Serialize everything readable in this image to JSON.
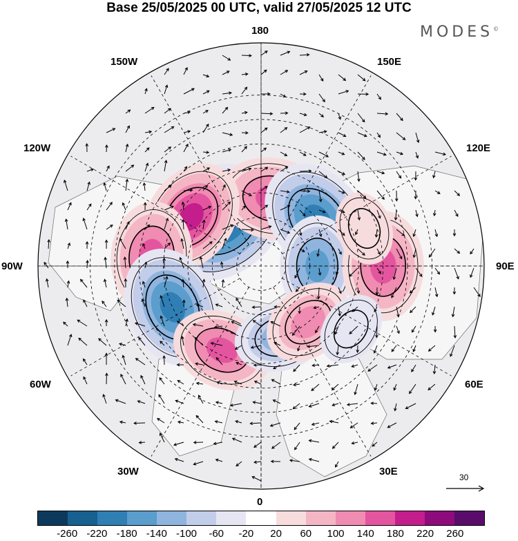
{
  "title": "Base 25/05/2025 00 UTC, valid 27/05/2025 12 UTC",
  "brand": "MODES",
  "brand_mark": "©",
  "longitude_labels": {
    "n180": "180",
    "w150": "150W",
    "e150": "150E",
    "w120": "120W",
    "e120": "120E",
    "w90": "90W",
    "e90": "90E",
    "w60": "60W",
    "e60": "60E",
    "w30": "30W",
    "e30": "30E",
    "s0": "0"
  },
  "reference_vector": "30",
  "colorbar": {
    "ticks": [
      "-260",
      "-220",
      "-180",
      "-140",
      "-100",
      "-60",
      "-20",
      "20",
      "60",
      "100",
      "140",
      "180",
      "220",
      "260"
    ],
    "colors": [
      "#0d3a5c",
      "#18608f",
      "#2f7fb5",
      "#5b9dcc",
      "#8fb4de",
      "#c2cdea",
      "#e6e5f2",
      "#ffffff",
      "#f7dcde",
      "#f4b6c4",
      "#f08bb1",
      "#e4559f",
      "#c31e8c",
      "#8e0b7c",
      "#5a0c6b"
    ]
  },
  "anomalies": [
    {
      "lon": -145,
      "lat": 58,
      "value": -120
    },
    {
      "lon": -140,
      "lat": 67,
      "value": -260
    },
    {
      "lon": 170,
      "lat": 62,
      "value": 180
    },
    {
      "lon": 130,
      "lat": 60,
      "value": -220
    },
    {
      "lon": -125,
      "lat": 55,
      "value": 200
    },
    {
      "lon": -95,
      "lat": 45,
      "value": 180
    },
    {
      "lon": 90,
      "lat": 67,
      "value": -150
    },
    {
      "lon": 90,
      "lat": 40,
      "value": 180
    },
    {
      "lon": -65,
      "lat": 50,
      "value": -220
    },
    {
      "lon": -25,
      "lat": 52,
      "value": 150
    },
    {
      "lon": 15,
      "lat": 60,
      "value": -120
    },
    {
      "lon": 40,
      "lat": 60,
      "value": 120
    },
    {
      "lon": 55,
      "lat": 45,
      "value": -60
    },
    {
      "lon": 110,
      "lat": 45,
      "value": 60
    }
  ]
}
